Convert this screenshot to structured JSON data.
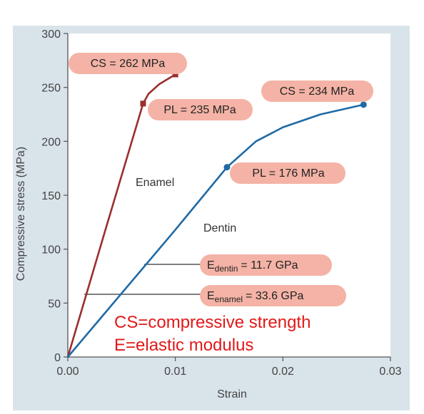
{
  "colors": {
    "figure_bg": "#d9e3ea",
    "plot_bg": "#ffffff",
    "enamel": "#9b2f2f",
    "dentin": "#1f6aa5",
    "label_fill": "#f4b3a6",
    "note": "#e11919"
  },
  "chart_data": {
    "type": "line",
    "xlabel": "Strain",
    "ylabel": "Compressive stress (MPa)",
    "xlim": [
      0,
      0.03
    ],
    "ylim": [
      0,
      300
    ],
    "xticks": [
      0,
      0.01,
      0.02,
      0.03
    ],
    "xtick_labels": [
      "0.00",
      "0.01",
      "0.02",
      "0.03"
    ],
    "yticks": [
      0,
      50,
      100,
      150,
      200,
      250,
      300
    ],
    "ytick_labels": [
      "0",
      "50",
      "100",
      "150",
      "200",
      "250",
      "300"
    ],
    "grid": false,
    "series": [
      {
        "name": "Enamel",
        "color": "#9b2f2f",
        "x": [
          0,
          0.0035,
          0.007,
          0.0075,
          0.0085,
          0.01
        ],
        "y": [
          0,
          118,
          235,
          244,
          253,
          262
        ],
        "markers": [
          {
            "x": 0.007,
            "y": 235,
            "shape": "square"
          },
          {
            "x": 0.01,
            "y": 262,
            "shape": "square"
          }
        ]
      },
      {
        "name": "Dentin",
        "color": "#1f6aa5",
        "x": [
          0,
          0.005,
          0.01,
          0.0148,
          0.0175,
          0.02,
          0.0235,
          0.0275
        ],
        "y": [
          0,
          59,
          118,
          176,
          200,
          213,
          225,
          234
        ],
        "markers": [
          {
            "x": 0.0148,
            "y": 176,
            "shape": "circle"
          },
          {
            "x": 0.0275,
            "y": 234,
            "shape": "circle"
          }
        ]
      }
    ],
    "annotations": {
      "enamel_cs": "CS = 262 MPa",
      "enamel_pl": "PL = 235 MPa",
      "dentin_cs": "CS = 234 MPa",
      "dentin_pl": "PL = 176 MPa",
      "enamel_name": "Enamel",
      "dentin_name": "Dentin",
      "e_dentin_main": "E",
      "e_dentin_sub": "dentin",
      "e_dentin_value": "= 11.7 GPa",
      "e_enamel_main": "E",
      "e_enamel_sub": "enamel",
      "e_enamel_value": "= 33.6 GPa"
    },
    "notes": [
      "CS=compressive strength",
      "E=elastic modulus"
    ]
  }
}
